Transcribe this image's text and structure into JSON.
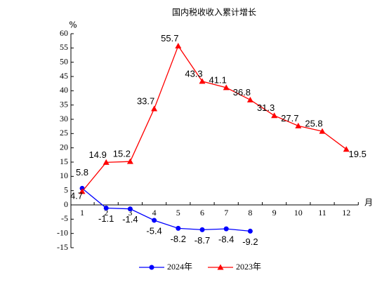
{
  "chart_data": {
    "type": "line",
    "title": "国内税收收入累计增长",
    "y_label": "%",
    "x_label": "月",
    "categories": [
      "1",
      "2",
      "3",
      "4",
      "5",
      "6",
      "7",
      "8",
      "9",
      "10",
      "11",
      "12"
    ],
    "series": [
      {
        "name": "2024年",
        "color": "#0000ff",
        "marker": "circle",
        "values": [
          5.8,
          -1.1,
          -1.4,
          -5.4,
          -8.2,
          -8.7,
          -8.4,
          -9.2,
          null,
          null,
          null,
          null
        ]
      },
      {
        "name": "2023年",
        "color": "#ff0000",
        "marker": "triangle",
        "values": [
          4.7,
          14.9,
          15.2,
          33.7,
          55.7,
          43.3,
          41.1,
          36.8,
          31.3,
          27.7,
          25.8,
          19.5
        ]
      }
    ],
    "ylim": [
      -15,
      60
    ],
    "yticks": [
      -15,
      -10,
      -5,
      0,
      5,
      10,
      15,
      20,
      25,
      30,
      35,
      40,
      45,
      50,
      55,
      60
    ],
    "legend": "bottom"
  }
}
